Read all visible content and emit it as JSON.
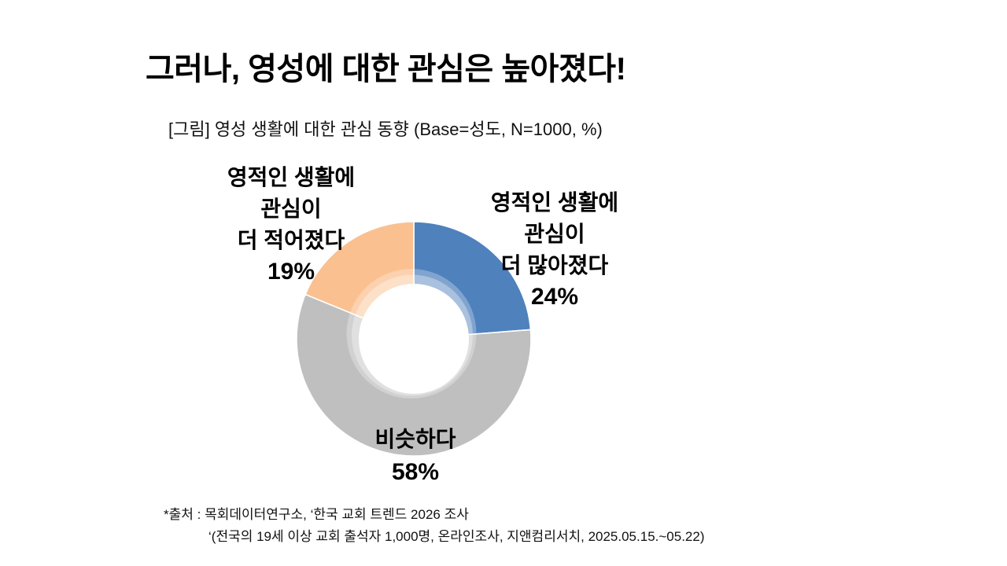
{
  "title": "그러나, 영성에 대한 관심은 높아졌다!",
  "subtitle": "[그림] 영성 생활에 대한 관심 동향 (Base=성도, N=1000, %)",
  "chart_data": {
    "type": "pie",
    "subtype": "donut",
    "title": "영성 생활에 대한 관심 동향",
    "base": "성도",
    "n": "1000",
    "unit": "%",
    "start_angle_deg": -90,
    "direction": "clockwise",
    "hole_ratio": 0.47,
    "slices": [
      {
        "label": "영적인 생활에 관심이 더 많아졌다",
        "label_lines": [
          "영적인 생활에",
          "관심이",
          "더 많아졌다"
        ],
        "value": 24,
        "display": "24%",
        "color": "#4F81BD"
      },
      {
        "label": "비슷하다",
        "label_lines": [
          "비슷하다"
        ],
        "value": 58,
        "display": "58%",
        "color": "#BFBFBF"
      },
      {
        "label": "영적인 생활에 관심이 더 적어졌다",
        "label_lines": [
          "영적인 생활에",
          "관심이",
          "더 적어졌다"
        ],
        "value": 19,
        "display": "19%",
        "color": "#FAC090"
      }
    ],
    "highlight": {
      "ring1_opacity": 0.28,
      "ring2_opacity": 0.32,
      "separator_color": "#ffffff"
    }
  },
  "source": {
    "line1": "*출처 : 목회데이터연구소, ‘한국 교회 트렌드 2026 조사",
    "line2": "‘(전국의 19세 이상 교회 출석자 1,000명, 온라인조사, 지앤컴리서치, 2025.05.15.~05.22)"
  }
}
